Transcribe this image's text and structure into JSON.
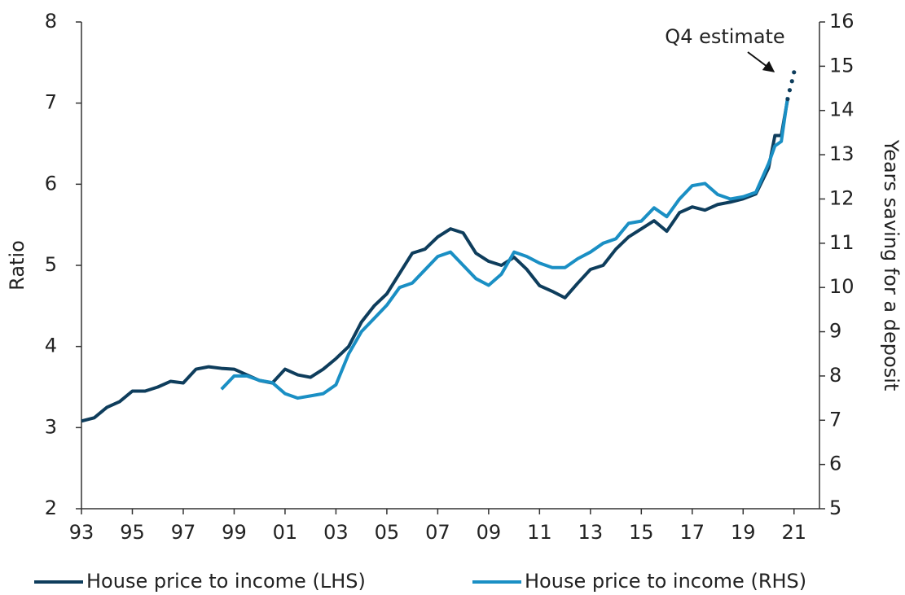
{
  "chart_data": {
    "type": "line",
    "ylabel": "Ratio",
    "y2label": "Years saving for a deposit",
    "xlim": [
      1993,
      2022
    ],
    "xticks": [
      {
        "value": 1993,
        "label": "93"
      },
      {
        "value": 1995,
        "label": "95"
      },
      {
        "value": 1997,
        "label": "97"
      },
      {
        "value": 1999,
        "label": "99"
      },
      {
        "value": 2001,
        "label": "01"
      },
      {
        "value": 2003,
        "label": "03"
      },
      {
        "value": 2005,
        "label": "05"
      },
      {
        "value": 2007,
        "label": "07"
      },
      {
        "value": 2009,
        "label": "09"
      },
      {
        "value": 2011,
        "label": "11"
      },
      {
        "value": 2013,
        "label": "13"
      },
      {
        "value": 2015,
        "label": "15"
      },
      {
        "value": 2017,
        "label": "17"
      },
      {
        "value": 2019,
        "label": "19"
      },
      {
        "value": 2021,
        "label": "21"
      }
    ],
    "ylim": [
      2,
      8
    ],
    "yticks": [
      2,
      3,
      4,
      5,
      6,
      7,
      8
    ],
    "y2lim": [
      5,
      16
    ],
    "y2ticks": [
      5,
      6,
      7,
      8,
      9,
      10,
      11,
      12,
      13,
      14,
      15,
      16
    ],
    "series": [
      {
        "name": "House price to income (LHS)",
        "color": "#0e3d5c",
        "axis": "y",
        "x": [
          1993,
          1993.5,
          1994,
          1994.5,
          1995,
          1995.5,
          1996,
          1996.5,
          1997,
          1997.5,
          1998,
          1998.5,
          1999,
          1999.5,
          2000,
          2000.5,
          2001,
          2001.5,
          2002,
          2002.5,
          2003,
          2003.5,
          2004,
          2004.5,
          2005,
          2005.5,
          2006,
          2006.5,
          2007,
          2007.5,
          2008,
          2008.5,
          2009,
          2009.5,
          2010,
          2010.5,
          2011,
          2011.5,
          2012,
          2012.5,
          2013,
          2013.5,
          2014,
          2014.5,
          2015,
          2015.5,
          2016,
          2016.5,
          2017,
          2017.5,
          2018,
          2018.5,
          2019,
          2019.5,
          2020,
          2020.25,
          2020.5,
          2020.75
        ],
        "values": [
          3.08,
          3.12,
          3.25,
          3.32,
          3.45,
          3.45,
          3.5,
          3.57,
          3.55,
          3.72,
          3.75,
          3.73,
          3.72,
          3.65,
          3.58,
          3.55,
          3.72,
          3.65,
          3.62,
          3.72,
          3.85,
          4.0,
          4.3,
          4.5,
          4.65,
          4.9,
          5.15,
          5.2,
          5.35,
          5.45,
          5.4,
          5.15,
          5.05,
          5.0,
          5.1,
          4.95,
          4.75,
          4.68,
          4.6,
          4.78,
          4.95,
          5.0,
          5.2,
          5.35,
          5.45,
          5.55,
          5.42,
          5.65,
          5.72,
          5.68,
          5.75,
          5.78,
          5.82,
          5.88,
          6.2,
          6.6,
          6.6,
          7.05
        ]
      },
      {
        "name": "House price to income (RHS)",
        "color": "#1a8fc4",
        "axis": "y2",
        "x": [
          1998.5,
          1999,
          1999.5,
          2000,
          2000.5,
          2001,
          2001.5,
          2002,
          2002.5,
          2003,
          2003.5,
          2004,
          2004.5,
          2005,
          2005.5,
          2006,
          2006.5,
          2007,
          2007.5,
          2008,
          2008.5,
          2009,
          2009.5,
          2010,
          2010.5,
          2011,
          2011.5,
          2012,
          2012.5,
          2013,
          2013.5,
          2014,
          2014.5,
          2015,
          2015.5,
          2016,
          2016.5,
          2017,
          2017.5,
          2018,
          2018.5,
          2019,
          2019.5,
          2020,
          2020.25,
          2020.5,
          2020.75
        ],
        "values": [
          7.7,
          8.0,
          8.0,
          7.9,
          7.85,
          7.6,
          7.5,
          7.55,
          7.6,
          7.8,
          8.5,
          9.0,
          9.3,
          9.6,
          10.0,
          10.1,
          10.4,
          10.7,
          10.8,
          10.5,
          10.2,
          10.05,
          10.3,
          10.8,
          10.7,
          10.55,
          10.45,
          10.45,
          10.65,
          10.8,
          11.0,
          11.1,
          11.45,
          11.5,
          11.8,
          11.6,
          12.0,
          12.3,
          12.35,
          12.1,
          12.0,
          12.05,
          12.15,
          12.8,
          13.2,
          13.3,
          14.3
        ]
      }
    ],
    "annotation": {
      "text": "Q4 estimate",
      "x": [
        2020.75,
        2020.83,
        2020.92,
        2021
      ],
      "values": [
        7.05,
        7.16,
        7.27,
        7.38
      ]
    }
  }
}
